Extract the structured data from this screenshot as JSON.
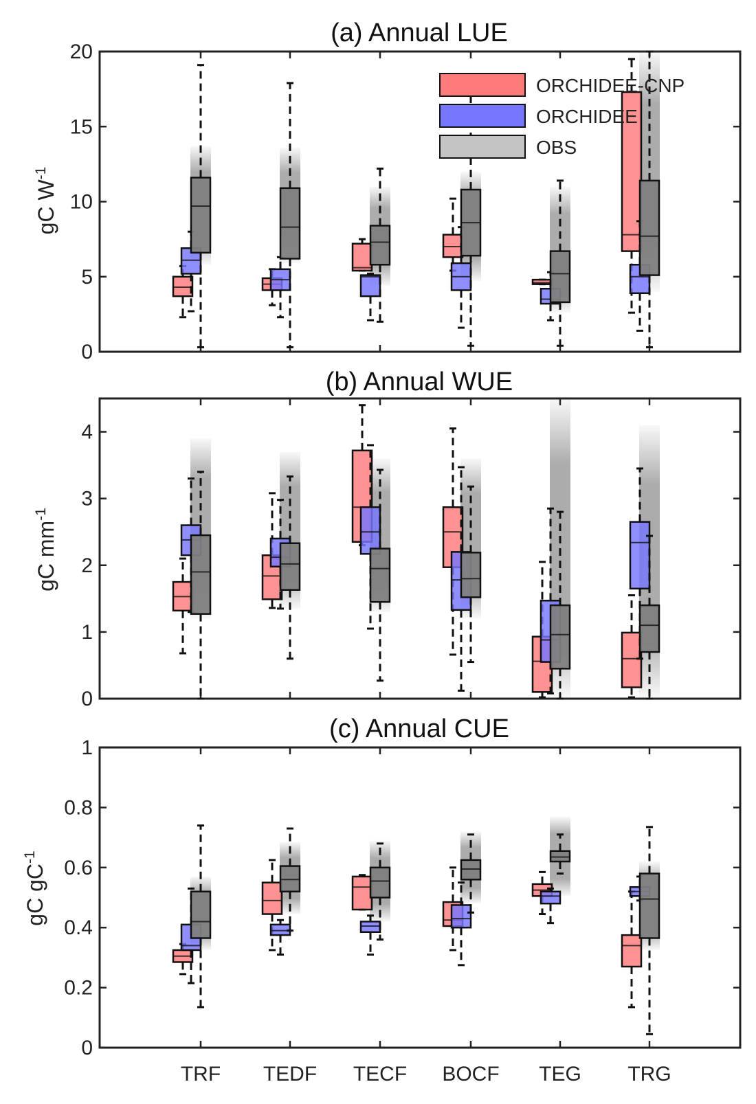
{
  "chart_data": [
    {
      "type": "box",
      "title": "(a) Annual LUE",
      "ylabel": "gC W",
      "ylabel_sup": "-1",
      "ylim": [
        0,
        20
      ],
      "yticks": [
        0,
        5,
        10,
        15,
        20
      ],
      "categories": [
        "TRF",
        "TEDF",
        "TECF",
        "BOCF",
        "TEG",
        "TRG"
      ],
      "legend": {
        "position": "top-right",
        "entries": [
          "ORCHIDEE-CNP",
          "ORCHIDEE",
          "OBS"
        ]
      },
      "series": [
        {
          "name": "ORCHIDEE-CNP",
          "color": "#ff7a7a",
          "boxes": [
            {
              "q1": 3.7,
              "median": 4.3,
              "q3": 5.0,
              "wlo": 2.3,
              "whi": 5.7
            },
            {
              "q1": 4.1,
              "median": 4.5,
              "q3": 4.9,
              "wlo": 3.1,
              "whi": 5.5
            },
            {
              "q1": 5.4,
              "median": 5.6,
              "q3": 7.2,
              "wlo": 5.4,
              "whi": 7.5
            },
            {
              "q1": 6.3,
              "median": 7.0,
              "q3": 7.8,
              "wlo": 5.4,
              "whi": 10.2
            },
            {
              "q1": 4.5,
              "median": 4.6,
              "q3": 4.8,
              "wlo": 4.5,
              "whi": 4.8
            },
            {
              "q1": 6.7,
              "median": 7.8,
              "q3": 17.3,
              "wlo": 2.6,
              "whi": 19.5
            }
          ]
        },
        {
          "name": "ORCHIDEE",
          "color": "#7676ff",
          "boxes": [
            {
              "q1": 5.2,
              "median": 6.1,
              "q3": 6.9,
              "wlo": 2.7,
              "whi": 8.0
            },
            {
              "q1": 4.1,
              "median": 4.8,
              "q3": 5.5,
              "wlo": 2.3,
              "whi": 6.3
            },
            {
              "q1": 3.7,
              "median": 5.0,
              "q3": 5.1,
              "wlo": 2.1,
              "whi": 5.2
            },
            {
              "q1": 4.1,
              "median": 5.0,
              "q3": 5.9,
              "wlo": 1.6,
              "whi": 8.3
            },
            {
              "q1": 3.2,
              "median": 3.5,
              "q3": 4.2,
              "wlo": 2.1,
              "whi": 5.3
            },
            {
              "q1": 3.9,
              "median": 5.0,
              "q3": 5.8,
              "wlo": 1.4,
              "whi": 8.7
            }
          ]
        },
        {
          "name": "OBS",
          "color": "#7f7f7f",
          "boxes": [
            {
              "q1": 6.6,
              "median": 9.7,
              "q3": 11.6,
              "wlo": 0.3,
              "whi": 19.1
            },
            {
              "q1": 6.2,
              "median": 8.3,
              "q3": 10.9,
              "wlo": 0.3,
              "whi": 17.9
            },
            {
              "q1": 5.8,
              "median": 7.3,
              "q3": 8.4,
              "wlo": 2.0,
              "whi": 12.2
            },
            {
              "q1": 6.4,
              "median": 8.6,
              "q3": 10.8,
              "wlo": 0.4,
              "whi": 17.6
            },
            {
              "q1": 3.3,
              "median": 5.2,
              "q3": 6.7,
              "wlo": 0.4,
              "whi": 11.4
            },
            {
              "q1": 5.1,
              "median": 7.7,
              "q3": 11.4,
              "wlo": 0.3,
              "whi": 20.0
            }
          ],
          "shade": [
            [
              5.8,
              13.7
            ],
            [
              5.9,
              13.6
            ],
            [
              4.4,
              11.0
            ],
            [
              4.7,
              12.0
            ],
            [
              2.6,
              11.0
            ],
            [
              4.0,
              20.0
            ]
          ]
        }
      ]
    },
    {
      "type": "box",
      "title": "(b) Annual WUE",
      "ylabel": "gC mm",
      "ylabel_sup": "-1",
      "ylim": [
        0,
        4.5
      ],
      "yticks": [
        0,
        1,
        2,
        3,
        4
      ],
      "categories": [
        "TRF",
        "TEDF",
        "TECF",
        "BOCF",
        "TEG",
        "TRG"
      ],
      "series": [
        {
          "name": "ORCHIDEE-CNP",
          "color": "#ff7a7a",
          "boxes": [
            {
              "q1": 1.32,
              "median": 1.53,
              "q3": 1.75,
              "wlo": 0.68,
              "whi": 2.1
            },
            {
              "q1": 1.49,
              "median": 1.84,
              "q3": 2.15,
              "wlo": 1.36,
              "whi": 3.08
            },
            {
              "q1": 2.35,
              "median": 2.87,
              "q3": 3.72,
              "wlo": 2.3,
              "whi": 4.4
            },
            {
              "q1": 1.97,
              "median": 2.5,
              "q3": 2.87,
              "wlo": 0.66,
              "whi": 4.05
            },
            {
              "q1": 0.1,
              "median": 0.56,
              "q3": 0.93,
              "wlo": 0.02,
              "whi": 2.05
            },
            {
              "q1": 0.17,
              "median": 0.6,
              "q3": 0.99,
              "wlo": 0.02,
              "whi": 1.55
            }
          ]
        },
        {
          "name": "ORCHIDEE",
          "color": "#7676ff",
          "boxes": [
            {
              "q1": 2.15,
              "median": 2.38,
              "q3": 2.6,
              "wlo": 1.3,
              "whi": 3.3
            },
            {
              "q1": 1.98,
              "median": 2.12,
              "q3": 2.4,
              "wlo": 1.35,
              "whi": 2.98
            },
            {
              "q1": 2.17,
              "median": 2.5,
              "q3": 2.87,
              "wlo": 1.05,
              "whi": 3.8
            },
            {
              "q1": 1.33,
              "median": 1.78,
              "q3": 2.2,
              "wlo": 0.12,
              "whi": 3.47
            },
            {
              "q1": 0.55,
              "median": 0.88,
              "q3": 1.47,
              "wlo": 0.08,
              "whi": 2.85
            },
            {
              "q1": 1.65,
              "median": 2.34,
              "q3": 2.65,
              "wlo": 0.6,
              "whi": 3.45
            }
          ]
        },
        {
          "name": "OBS",
          "color": "#7f7f7f",
          "boxes": [
            {
              "q1": 1.27,
              "median": 1.9,
              "q3": 2.45,
              "wlo": 0.0,
              "whi": 3.4
            },
            {
              "q1": 1.63,
              "median": 2.02,
              "q3": 2.33,
              "wlo": 0.6,
              "whi": 3.33
            },
            {
              "q1": 1.45,
              "median": 1.95,
              "q3": 2.25,
              "wlo": 0.27,
              "whi": 3.43
            },
            {
              "q1": 1.52,
              "median": 1.8,
              "q3": 2.19,
              "wlo": 0.55,
              "whi": 3.18
            },
            {
              "q1": 0.45,
              "median": 0.96,
              "q3": 1.4,
              "wlo": 0.0,
              "whi": 2.8
            },
            {
              "q1": 0.7,
              "median": 1.1,
              "q3": 1.4,
              "wlo": 0.0,
              "whi": 2.44
            }
          ],
          "shade": [
            [
              1.2,
              3.9
            ],
            [
              1.35,
              3.7
            ],
            [
              1.3,
              3.6
            ],
            [
              1.2,
              3.6
            ],
            [
              0.02,
              4.5
            ],
            [
              0.02,
              4.1
            ]
          ]
        }
      ]
    },
    {
      "type": "box",
      "title": "(c) Annual CUE",
      "ylabel": "gC gC",
      "ylabel_sup": "-1",
      "ylim": [
        0,
        1
      ],
      "yticks": [
        0,
        0.2,
        0.4,
        0.6,
        0.8,
        1
      ],
      "categories": [
        "TRF",
        "TEDF",
        "TECF",
        "BOCF",
        "TEG",
        "TRG"
      ],
      "series": [
        {
          "name": "ORCHIDEE-CNP",
          "color": "#ff7a7a",
          "boxes": [
            {
              "q1": 0.285,
              "median": 0.305,
              "q3": 0.325,
              "wlo": 0.245,
              "whi": 0.345
            },
            {
              "q1": 0.445,
              "median": 0.49,
              "q3": 0.55,
              "wlo": 0.325,
              "whi": 0.625
            },
            {
              "q1": 0.46,
              "median": 0.535,
              "q3": 0.57,
              "wlo": 0.46,
              "whi": 0.575
            },
            {
              "q1": 0.405,
              "median": 0.425,
              "q3": 0.485,
              "wlo": 0.325,
              "whi": 0.6
            },
            {
              "q1": 0.505,
              "median": 0.525,
              "q3": 0.545,
              "wlo": 0.445,
              "whi": 0.585
            },
            {
              "q1": 0.27,
              "median": 0.34,
              "q3": 0.375,
              "wlo": 0.135,
              "whi": 0.52
            }
          ]
        },
        {
          "name": "ORCHIDEE",
          "color": "#7676ff",
          "boxes": [
            {
              "q1": 0.325,
              "median": 0.34,
              "q3": 0.41,
              "wlo": 0.215,
              "whi": 0.53
            },
            {
              "q1": 0.375,
              "median": 0.39,
              "q3": 0.41,
              "wlo": 0.31,
              "whi": 0.425
            },
            {
              "q1": 0.385,
              "median": 0.405,
              "q3": 0.42,
              "wlo": 0.31,
              "whi": 0.44
            },
            {
              "q1": 0.4,
              "median": 0.43,
              "q3": 0.475,
              "wlo": 0.275,
              "whi": 0.55
            },
            {
              "q1": 0.48,
              "median": 0.505,
              "q3": 0.52,
              "wlo": 0.415,
              "whi": 0.53
            },
            {
              "q1": 0.505,
              "median": 0.52,
              "q3": 0.535,
              "wlo": 0.49,
              "whi": 0.57
            }
          ]
        },
        {
          "name": "OBS",
          "color": "#7f7f7f",
          "boxes": [
            {
              "q1": 0.365,
              "median": 0.42,
              "q3": 0.52,
              "wlo": 0.135,
              "whi": 0.74
            },
            {
              "q1": 0.52,
              "median": 0.56,
              "q3": 0.605,
              "wlo": 0.39,
              "whi": 0.73
            },
            {
              "q1": 0.5,
              "median": 0.555,
              "q3": 0.6,
              "wlo": 0.36,
              "whi": 0.68
            },
            {
              "q1": 0.56,
              "median": 0.595,
              "q3": 0.625,
              "wlo": 0.45,
              "whi": 0.71
            },
            {
              "q1": 0.62,
              "median": 0.635,
              "q3": 0.655,
              "wlo": 0.58,
              "whi": 0.71
            },
            {
              "q1": 0.365,
              "median": 0.495,
              "q3": 0.58,
              "wlo": 0.045,
              "whi": 0.735
            }
          ],
          "shade": [
            [
              0.325,
              0.57
            ],
            [
              0.445,
              0.685
            ],
            [
              0.42,
              0.69
            ],
            [
              0.48,
              0.72
            ],
            [
              0.505,
              0.77
            ],
            [
              0.325,
              0.62
            ]
          ]
        }
      ]
    }
  ]
}
